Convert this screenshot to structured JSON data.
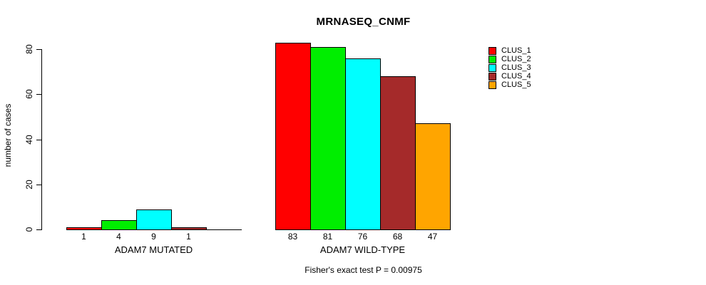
{
  "chart_data": {
    "type": "bar",
    "title": "MRNASEQ_CNMF",
    "ylabel": "number of cases",
    "xlabel": "",
    "ylim": [
      0,
      80
    ],
    "yticks": [
      0,
      20,
      40,
      60,
      80
    ],
    "grid": false,
    "legend_position": "right",
    "annotation": "Fisher's exact test P = 0.00975",
    "legend": [
      {
        "label": "CLUS_1",
        "color": "#FF0000"
      },
      {
        "label": "CLUS_2",
        "color": "#00EE00"
      },
      {
        "label": "CLUS_3",
        "color": "#00FFFF"
      },
      {
        "label": "CLUS_4",
        "color": "#A52A2A"
      },
      {
        "label": "CLUS_5",
        "color": "#FFA500"
      }
    ],
    "groups": [
      {
        "label": "ADAM7 MUTATED",
        "series": [
          "CLUS_1",
          "CLUS_2",
          "CLUS_3",
          "CLUS_4",
          "CLUS_5"
        ],
        "values": [
          1,
          4,
          9,
          1,
          0
        ],
        "bar_labels": [
          "1",
          "4",
          "9",
          "1",
          ""
        ]
      },
      {
        "label": "ADAM7 WILD-TYPE",
        "series": [
          "CLUS_1",
          "CLUS_2",
          "CLUS_3",
          "CLUS_4",
          "CLUS_5"
        ],
        "values": [
          83,
          81,
          76,
          68,
          47
        ],
        "bar_labels": [
          "83",
          "81",
          "76",
          "68",
          "47"
        ]
      }
    ]
  }
}
